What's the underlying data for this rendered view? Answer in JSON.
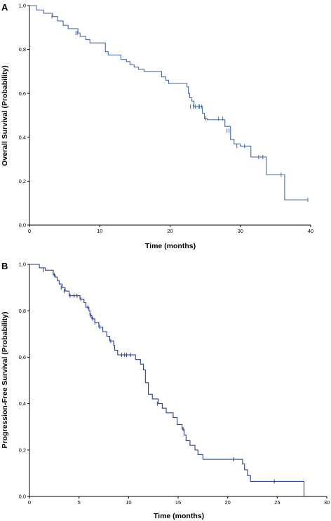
{
  "chart_data": [
    {
      "type": "line",
      "panel_label": "A",
      "xlabel": "Time (months)",
      "ylabel": "Overall Survival (Probability)",
      "xlim": [
        0,
        40
      ],
      "ylim": [
        0,
        1
      ],
      "x_ticks": [
        "0",
        "10",
        "20",
        "30",
        "40"
      ],
      "y_ticks": [
        "0,0",
        "0,2",
        "0,4",
        "0,6",
        "0,8",
        "1,0"
      ],
      "grid": false,
      "line_color": "#4a6aa8",
      "series": [
        {
          "steps": [
            [
              0,
              1.0
            ],
            [
              1.0,
              0.98
            ],
            [
              2.0,
              0.965
            ],
            [
              3.3,
              0.95
            ],
            [
              4.0,
              0.93
            ],
            [
              4.8,
              0.91
            ],
            [
              5.5,
              0.895
            ],
            [
              6.9,
              0.875
            ],
            [
              7.2,
              0.86
            ],
            [
              8.0,
              0.845
            ],
            [
              8.6,
              0.83
            ],
            [
              10.8,
              0.79
            ],
            [
              11.2,
              0.775
            ],
            [
              13.0,
              0.755
            ],
            [
              13.8,
              0.745
            ],
            [
              14.3,
              0.73
            ],
            [
              14.9,
              0.72
            ],
            [
              15.5,
              0.71
            ],
            [
              16.3,
              0.7
            ],
            [
              18.8,
              0.675
            ],
            [
              19.4,
              0.66
            ],
            [
              19.8,
              0.645
            ],
            [
              22.4,
              0.63
            ],
            [
              22.6,
              0.6
            ],
            [
              22.8,
              0.58
            ],
            [
              23.1,
              0.565
            ],
            [
              23.4,
              0.54
            ],
            [
              24.6,
              0.51
            ],
            [
              24.9,
              0.485
            ],
            [
              25.3,
              0.48
            ],
            [
              27.8,
              0.45
            ],
            [
              28.6,
              0.39
            ],
            [
              29.1,
              0.37
            ],
            [
              30.0,
              0.36
            ],
            [
              31.5,
              0.31
            ],
            [
              33.7,
              0.23
            ],
            [
              36.3,
              0.115
            ],
            [
              39.6,
              0.115
            ]
          ],
          "censored": [
            [
              3.2,
              0.95
            ],
            [
              6.6,
              0.875
            ],
            [
              6.8,
              0.875
            ],
            [
              22.9,
              0.54
            ],
            [
              23.3,
              0.54
            ],
            [
              23.6,
              0.54
            ],
            [
              24.0,
              0.54
            ],
            [
              24.2,
              0.54
            ],
            [
              24.5,
              0.54
            ],
            [
              25.1,
              0.485
            ],
            [
              26.9,
              0.485
            ],
            [
              27.5,
              0.485
            ],
            [
              28.1,
              0.43
            ],
            [
              28.4,
              0.43
            ],
            [
              29.5,
              0.36
            ],
            [
              30.6,
              0.36
            ],
            [
              32.6,
              0.31
            ],
            [
              33.2,
              0.31
            ],
            [
              35.8,
              0.23
            ],
            [
              39.6,
              0.115
            ]
          ]
        }
      ]
    },
    {
      "type": "line",
      "panel_label": "B",
      "xlabel": "Time (months)",
      "ylabel": "Progression-Free Survival (Probability)",
      "xlim": [
        0,
        30
      ],
      "ylim": [
        0,
        1
      ],
      "x_ticks": [
        "0",
        "5",
        "10",
        "15",
        "20",
        "25",
        "30"
      ],
      "y_ticks": [
        "0,0",
        "0,2",
        "0,4",
        "0,6",
        "0,8",
        "1,0"
      ],
      "grid": false,
      "line_color": "#2a3f94",
      "series": [
        {
          "steps": [
            [
              0,
              1.0
            ],
            [
              1.0,
              0.985
            ],
            [
              1.6,
              0.975
            ],
            [
              2.4,
              0.955
            ],
            [
              2.6,
              0.945
            ],
            [
              2.8,
              0.93
            ],
            [
              3.0,
              0.915
            ],
            [
              3.3,
              0.9
            ],
            [
              3.6,
              0.885
            ],
            [
              4.0,
              0.865
            ],
            [
              5.1,
              0.85
            ],
            [
              5.5,
              0.835
            ],
            [
              5.7,
              0.815
            ],
            [
              6.0,
              0.8
            ],
            [
              6.1,
              0.78
            ],
            [
              6.3,
              0.765
            ],
            [
              6.6,
              0.75
            ],
            [
              7.0,
              0.73
            ],
            [
              7.4,
              0.71
            ],
            [
              7.8,
              0.69
            ],
            [
              8.1,
              0.67
            ],
            [
              8.5,
              0.65
            ],
            [
              8.6,
              0.63
            ],
            [
              8.9,
              0.61
            ],
            [
              10.7,
              0.59
            ],
            [
              11.2,
              0.57
            ],
            [
              11.5,
              0.545
            ],
            [
              11.7,
              0.49
            ],
            [
              12.0,
              0.44
            ],
            [
              12.4,
              0.42
            ],
            [
              13.0,
              0.4
            ],
            [
              13.4,
              0.38
            ],
            [
              13.8,
              0.36
            ],
            [
              14.5,
              0.34
            ],
            [
              14.9,
              0.31
            ],
            [
              15.4,
              0.29
            ],
            [
              15.6,
              0.265
            ],
            [
              15.8,
              0.24
            ],
            [
              16.2,
              0.22
            ],
            [
              16.7,
              0.2
            ],
            [
              17.0,
              0.18
            ],
            [
              17.5,
              0.16
            ],
            [
              21.5,
              0.14
            ],
            [
              21.7,
              0.115
            ],
            [
              22.0,
              0.09
            ],
            [
              22.3,
              0.065
            ],
            [
              27.7,
              0.065
            ],
            [
              27.7,
              0.0
            ]
          ],
          "censored": [
            [
              1.4,
              0.975
            ],
            [
              2.5,
              0.955
            ],
            [
              3.2,
              0.9
            ],
            [
              3.5,
              0.885
            ],
            [
              4.1,
              0.865
            ],
            [
              4.5,
              0.865
            ],
            [
              4.8,
              0.865
            ],
            [
              5.2,
              0.85
            ],
            [
              5.9,
              0.815
            ],
            [
              6.2,
              0.78
            ],
            [
              6.4,
              0.765
            ],
            [
              6.6,
              0.75
            ],
            [
              7.1,
              0.73
            ],
            [
              8.2,
              0.67
            ],
            [
              9.3,
              0.61
            ],
            [
              9.6,
              0.61
            ],
            [
              9.8,
              0.61
            ],
            [
              10.2,
              0.61
            ],
            [
              12.9,
              0.4
            ],
            [
              15.5,
              0.29
            ],
            [
              20.6,
              0.16
            ],
            [
              24.7,
              0.065
            ]
          ]
        }
      ]
    }
  ]
}
